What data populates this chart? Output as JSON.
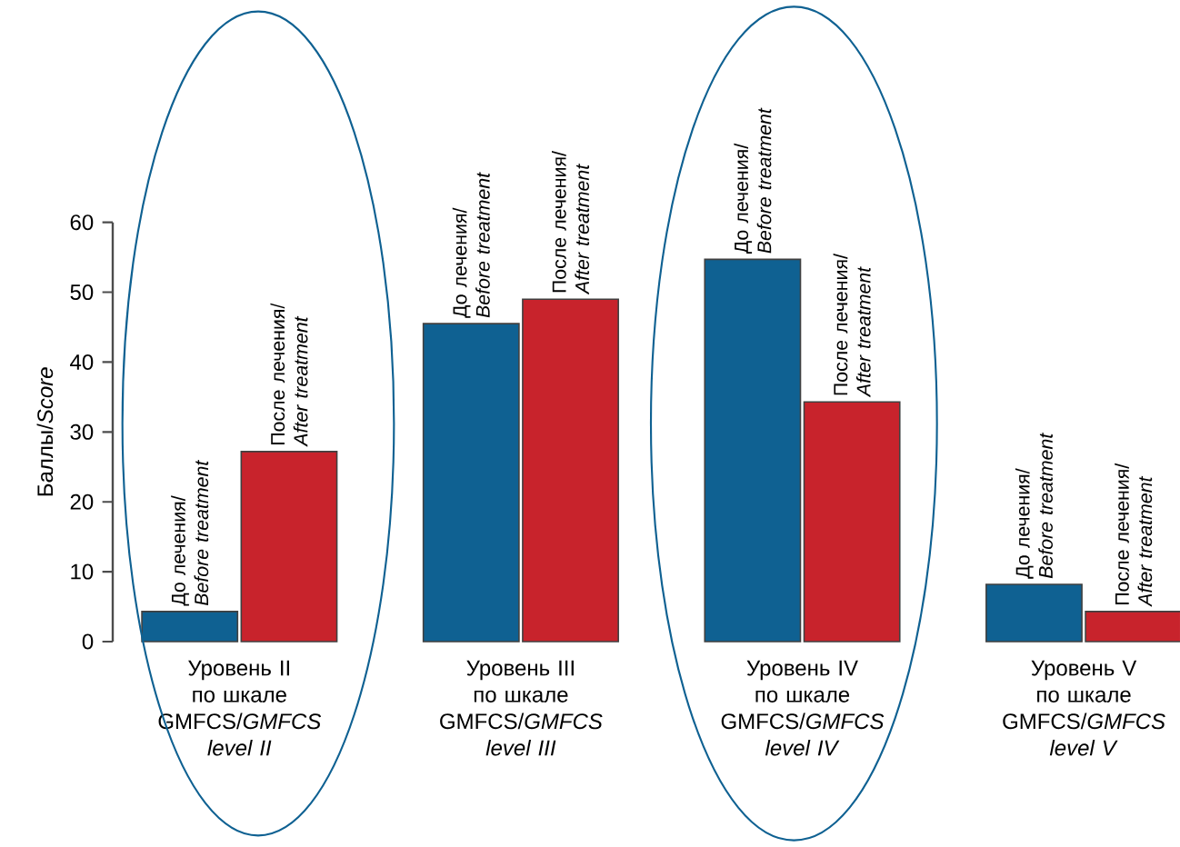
{
  "chart_data": {
    "type": "bar",
    "ylabel": "Баллы/*Score*",
    "categories": [
      "Уровень II по шкале GMFCS/*GMFCS level II*",
      "Уровень III по шкале GMFCS/*GMFCS level III*",
      "Уровень IV по шкале GMFCS/*GMFCS level IV*",
      "Уровень V по шкале GMFCS/*GMFCS level V*"
    ],
    "series": [
      {
        "name": "До лечения/ *Before treatment*",
        "color": "#0f6192",
        "values": [
          4.3,
          45.5,
          54.7,
          8.2
        ]
      },
      {
        "name": "После лечения/ *After treatment*",
        "color": "#c8232c",
        "values": [
          27.2,
          49,
          34.3,
          4.3
        ]
      }
    ],
    "ylim": [
      0,
      60
    ],
    "yticks": [
      0,
      10,
      20,
      30,
      40,
      50,
      60
    ]
  }
}
